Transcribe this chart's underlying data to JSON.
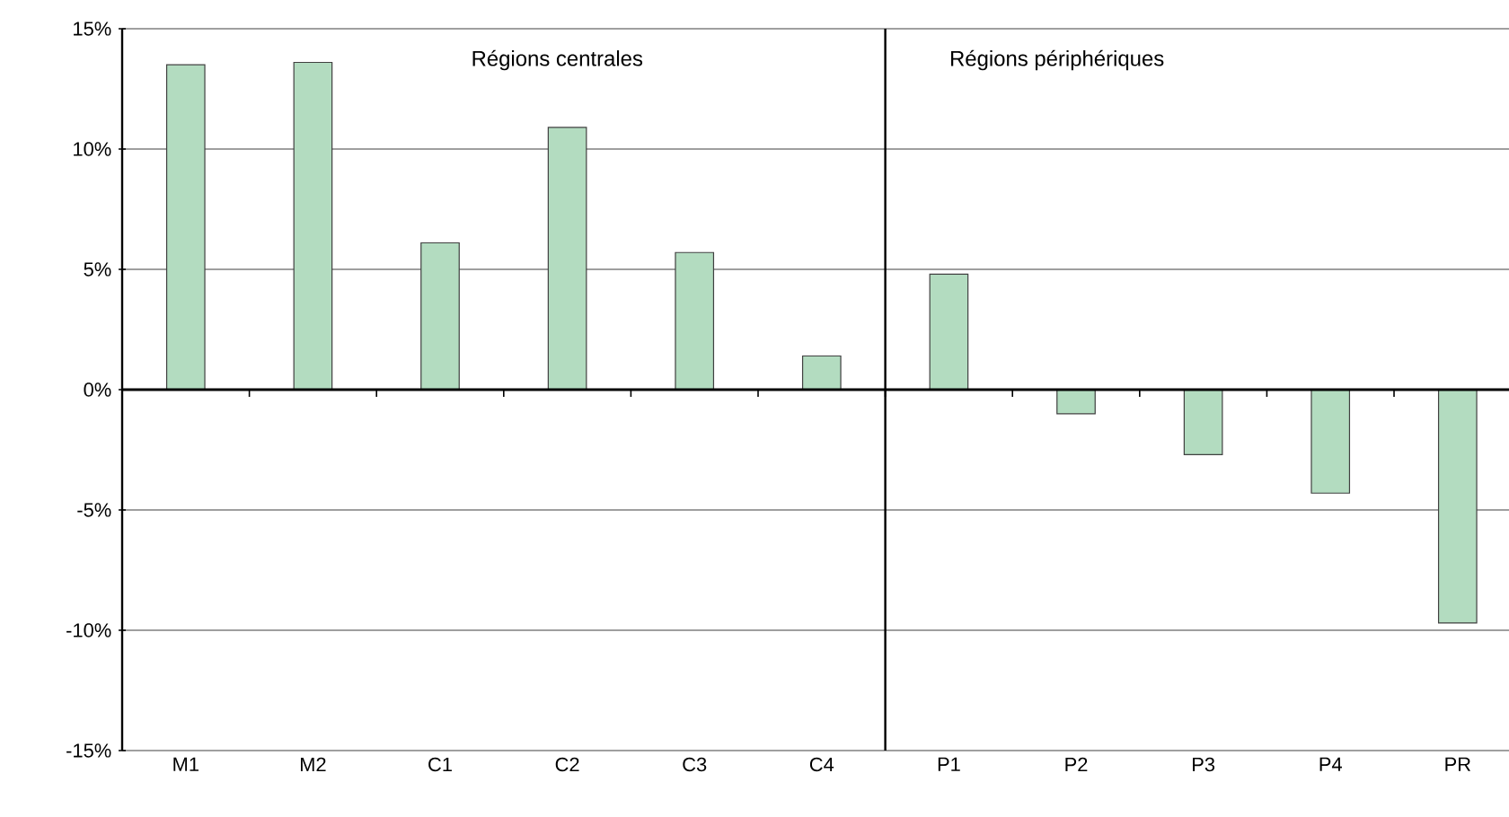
{
  "chart_data": [
    {
      "type": "bar",
      "categories": [
        "M1",
        "M2",
        "C1",
        "C2",
        "C3",
        "C4"
      ],
      "values": [
        13.5,
        13.6,
        6.1,
        10.9,
        5.7,
        1.4
      ],
      "color": "#b3dcc0",
      "ylim": [
        -15,
        15
      ],
      "yticks": [
        {
          "value": -15,
          "label": "-15%"
        },
        {
          "value": -10,
          "label": "-10%"
        },
        {
          "value": -5,
          "label": "-5%"
        },
        {
          "value": 0,
          "label": "0%"
        },
        {
          "value": 5,
          "label": "5%"
        },
        {
          "value": 10,
          "label": "10%"
        },
        {
          "value": 15,
          "label": "15%"
        }
      ],
      "grid": "y",
      "annotations": [
        "Régions centrales"
      ]
    },
    {
      "type": "bar",
      "categories": [
        "P1",
        "P2",
        "P3",
        "P4",
        "PR"
      ],
      "values": [
        4.8,
        -1.0,
        -2.7,
        -4.3,
        -9.7
      ],
      "color": "#b3dcc0",
      "ylim": [
        -15,
        15
      ],
      "yticks": [
        {
          "value": -15,
          "label": null
        },
        {
          "value": -10,
          "label": null
        },
        {
          "value": -5,
          "label": null
        },
        {
          "value": 0,
          "label": null
        },
        {
          "value": 5,
          "label": null
        },
        {
          "value": 10,
          "label": null
        },
        {
          "value": 15,
          "label": null
        }
      ],
      "grid": "y",
      "tick_labels": "x",
      "annotations": [
        "Régions périphériques"
      ]
    }
  ]
}
